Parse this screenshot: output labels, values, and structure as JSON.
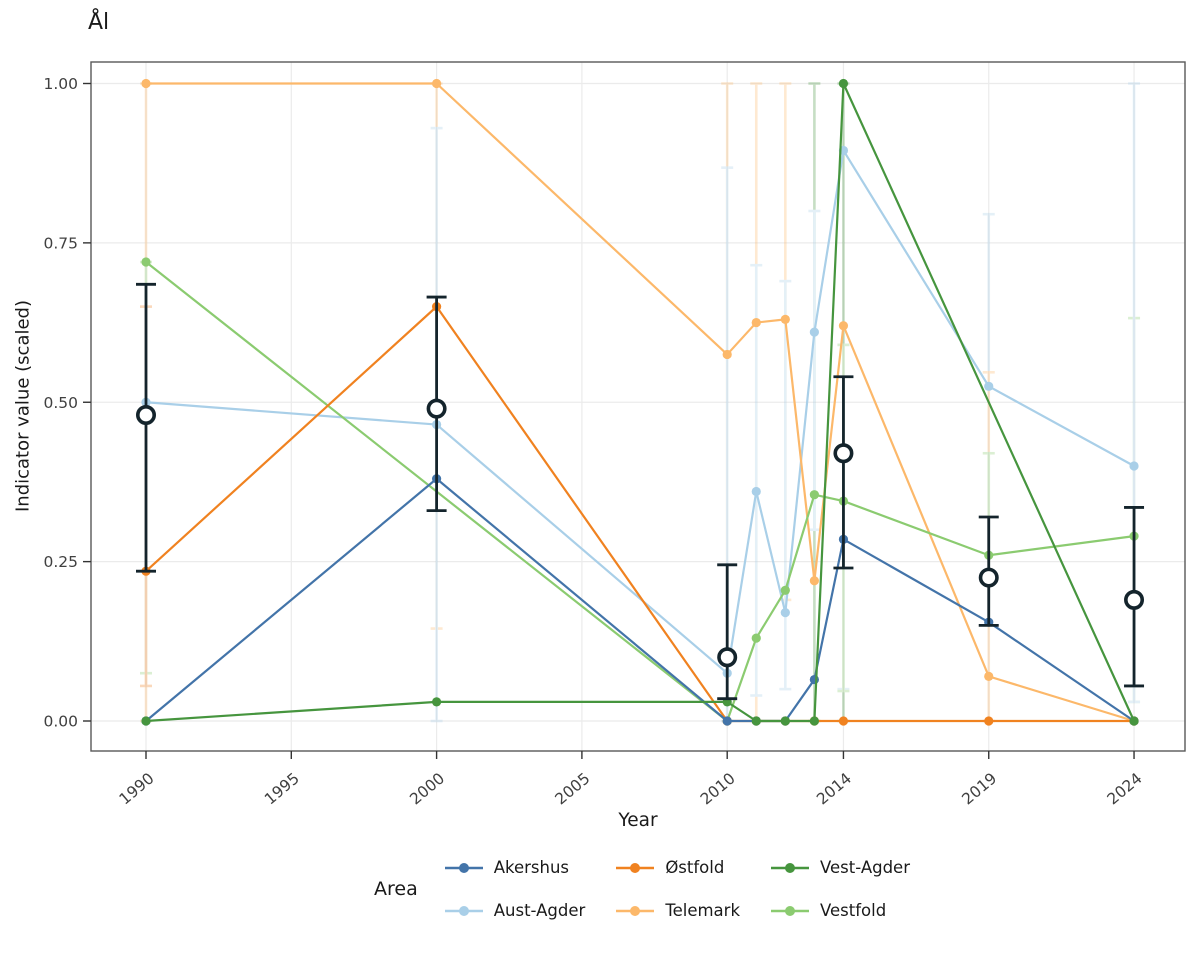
{
  "title": "Ål",
  "axes": {
    "x_label": "Year",
    "y_label": "Indicator value (scaled)"
  },
  "legend": {
    "title": "Area",
    "items": [
      {
        "label": "Akershus",
        "color": "#4374a9"
      },
      {
        "label": "Aust-Agder",
        "color": "#a9cfe8"
      },
      {
        "label": "Østfold",
        "color": "#f08220"
      },
      {
        "label": "Telemark",
        "color": "#fcb86a"
      },
      {
        "label": "Vest-Agder",
        "color": "#46953e"
      },
      {
        "label": "Vestfold",
        "color": "#8bcb70"
      }
    ]
  },
  "chart_data": {
    "type": "line",
    "title": "Ål",
    "xlabel": "Year",
    "ylabel": "Indicator value (scaled)",
    "ylim": [
      0,
      1
    ],
    "x_ticks": [
      1990,
      1995,
      2000,
      2005,
      2010,
      2014,
      2019,
      2024
    ],
    "y_tick_values": [
      0,
      0.25,
      0.5,
      0.75,
      1.0
    ],
    "y_tick_labels": [
      "0.00",
      "0.25",
      "0.50",
      "0.75",
      "1.00"
    ],
    "grid": true,
    "legend_position": "bottom",
    "panel_border_color": "#595959",
    "gridline_color": "#ebebeb",
    "tick_label_color": "#404040",
    "mean_color": "#14242c",
    "series": [
      {
        "name": "Aust-Agder",
        "color": "#a9cfe8",
        "points": [
          [
            1990,
            0.5
          ],
          [
            2000,
            0.465
          ],
          [
            2010,
            0.075
          ],
          [
            2011,
            0.36
          ],
          [
            2012,
            0.17
          ],
          [
            2013,
            0.61
          ],
          [
            2014,
            0.895
          ],
          [
            2019,
            0.525
          ],
          [
            2024,
            0.4
          ]
        ]
      },
      {
        "name": "Telemark",
        "color": "#fcb86a",
        "points": [
          [
            1990,
            1.0
          ],
          [
            2000,
            1.0
          ],
          [
            2010,
            0.575
          ],
          [
            2011,
            0.625
          ],
          [
            2012,
            0.63
          ],
          [
            2013,
            0.22
          ],
          [
            2014,
            0.62
          ],
          [
            2019,
            0.07
          ],
          [
            2024,
            0.0
          ]
        ]
      },
      {
        "name": "Vestfold",
        "color": "#8bcb70",
        "points": [
          [
            1990,
            0.72
          ],
          [
            2010,
            0.0
          ],
          [
            2011,
            0.13
          ],
          [
            2012,
            0.205
          ],
          [
            2013,
            0.355
          ],
          [
            2014,
            0.345
          ],
          [
            2019,
            0.26
          ],
          [
            2024,
            0.29
          ]
        ]
      },
      {
        "name": "Østfold",
        "color": "#f08220",
        "points": [
          [
            1990,
            0.235
          ],
          [
            2000,
            0.65
          ],
          [
            2010,
            0.0
          ],
          [
            2011,
            0.0
          ],
          [
            2012,
            0.0
          ],
          [
            2013,
            0.0
          ],
          [
            2014,
            0.0
          ],
          [
            2019,
            0.0
          ],
          [
            2024,
            0.0
          ]
        ]
      },
      {
        "name": "Akershus",
        "color": "#4374a9",
        "points": [
          [
            1990,
            0.0
          ],
          [
            2000,
            0.38
          ],
          [
            2010,
            0.0
          ],
          [
            2011,
            0.0
          ],
          [
            2012,
            0.0
          ],
          [
            2013,
            0.065
          ],
          [
            2014,
            0.285
          ],
          [
            2019,
            0.155
          ],
          [
            2024,
            0.0
          ]
        ]
      },
      {
        "name": "Vest-Agder",
        "color": "#46953e",
        "points": [
          [
            1990,
            0.0
          ],
          [
            2000,
            0.03
          ],
          [
            2010,
            0.03
          ],
          [
            2011,
            0.0
          ],
          [
            2012,
            0.0
          ],
          [
            2013,
            0.0
          ],
          [
            2014,
            1.0
          ],
          [
            2024,
            0.0
          ]
        ]
      }
    ],
    "mean_series": {
      "name": "Mean with confidence interval",
      "points": [
        {
          "year": 1990,
          "mean": 0.48,
          "lo": 0.235,
          "hi": 0.685
        },
        {
          "year": 2000,
          "mean": 0.49,
          "lo": 0.33,
          "hi": 0.665
        },
        {
          "year": 2010,
          "mean": 0.1,
          "lo": 0.035,
          "hi": 0.245
        },
        {
          "year": 2014,
          "mean": 0.42,
          "lo": 0.24,
          "hi": 0.54
        },
        {
          "year": 2019,
          "mean": 0.225,
          "lo": 0.15,
          "hi": 0.32
        },
        {
          "year": 2024,
          "mean": 0.19,
          "lo": 0.055,
          "hi": 0.335
        }
      ]
    },
    "uncertainty_whiskers": [
      {
        "year": 1990,
        "series": "Telemark",
        "lo": 0.0,
        "hi": 1.0
      },
      {
        "year": 1990,
        "series": "Vestfold",
        "lo": 0.075,
        "hi": 0.72
      },
      {
        "year": 1990,
        "series": "Østfold",
        "lo": 0.055,
        "hi": 0.65
      },
      {
        "year": 2000,
        "series": "Telemark",
        "lo": 0.145,
        "hi": 1.0
      },
      {
        "year": 2000,
        "series": "Aust-Agder",
        "lo": 0.0,
        "hi": 0.93
      },
      {
        "year": 2010,
        "series": "Telemark",
        "lo": 0.0,
        "hi": 1.0
      },
      {
        "year": 2010,
        "series": "Aust-Agder",
        "lo": 0.0,
        "hi": 0.868
      },
      {
        "year": 2011,
        "series": "Telemark",
        "lo": 0.0,
        "hi": 1.0
      },
      {
        "year": 2011,
        "series": "Aust-Agder",
        "lo": 0.04,
        "hi": 0.715
      },
      {
        "year": 2012,
        "series": "Telemark",
        "lo": 0.19,
        "hi": 1.0
      },
      {
        "year": 2012,
        "series": "Aust-Agder",
        "lo": 0.05,
        "hi": 0.69
      },
      {
        "year": 2013,
        "series": "Vest-Agder",
        "lo": 0.0,
        "hi": 1.0
      },
      {
        "year": 2013,
        "series": "Aust-Agder",
        "lo": 0.3,
        "hi": 0.8
      },
      {
        "year": 2014,
        "series": "Vest-Agder",
        "lo": 0.0,
        "hi": 1.0
      },
      {
        "year": 2014,
        "series": "Aust-Agder",
        "lo": 0.05,
        "hi": 0.59
      },
      {
        "year": 2014,
        "series": "Vestfold",
        "lo": 0.047,
        "hi": 0.59
      },
      {
        "year": 2019,
        "series": "Aust-Agder",
        "lo": 0.0,
        "hi": 0.795
      },
      {
        "year": 2019,
        "series": "Telemark",
        "lo": 0.0,
        "hi": 0.547
      },
      {
        "year": 2019,
        "series": "Vestfold",
        "lo": 0.15,
        "hi": 0.42
      },
      {
        "year": 2024,
        "series": "Vestfold",
        "lo": 0.03,
        "hi": 0.632
      },
      {
        "year": 2024,
        "series": "Aust-Agder",
        "lo": 0.03,
        "hi": 1.0
      }
    ]
  }
}
